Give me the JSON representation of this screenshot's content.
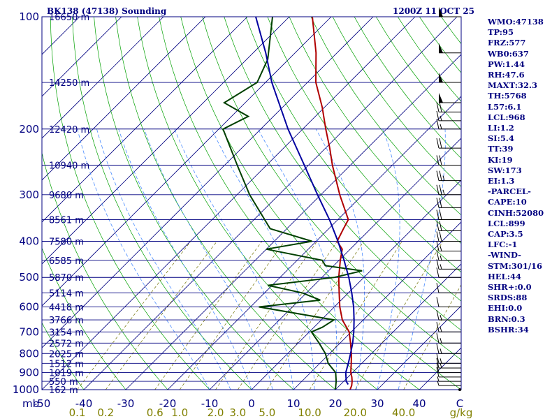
{
  "header": {
    "station": "BK138 (47138) Sounding",
    "time": "1200Z 11 OCT 25"
  },
  "indices": [
    "WMO:47138",
    "TP:95",
    "FRZ:577",
    "WB0:637",
    "PW:1.44",
    "RH:47.6",
    "MAXT:32.3",
    "TH:5768",
    "L57:6.1",
    "LCL:968",
    "LI:1.2",
    "SI:5.4",
    "TT:39",
    "KI:19",
    "SW:173",
    "EI:1.3",
    "-PARCEL-",
    "CAPE:10",
    "CINH:52080",
    "LCL:899",
    "CAP:3.5",
    "LFC:-1",
    "-WIND-",
    "STM:301/16",
    "HEL:44",
    "SHR+:0.0",
    "SRDS:88",
    "EHI:0.0",
    "BRN:0.3",
    "BSHR:34"
  ],
  "colors": {
    "isobar": "#000080",
    "temperature": "#b00000",
    "dewpoint": "#004000",
    "parcel": "#0000a0",
    "dry_adiabat": "#00a000",
    "moist_adiabat": "#4a8cff",
    "mixing_ratio": "#707000",
    "isotherm": "#000080"
  },
  "chart_data": {
    "type": "line",
    "chart_kind": "skew-T log-P sounding",
    "pressure_axis": {
      "unit": "mb",
      "label": "mb",
      "ticks": [
        100,
        200,
        300,
        400,
        500,
        600,
        700,
        800,
        900,
        1000
      ],
      "range": [
        1000,
        100
      ],
      "scale": "log"
    },
    "temperature_axis": {
      "unit": "C",
      "label": "C",
      "ticks": [
        -50,
        -40,
        -30,
        -20,
        -10,
        0,
        10,
        20,
        30,
        40
      ],
      "range_at_surface": [
        -50,
        50
      ]
    },
    "mixing_ratio_axis": {
      "unit": "g/kg",
      "label": "g/kg",
      "ticks": [
        "0.1",
        "0.2",
        "0.6",
        "1.0",
        "2.0",
        "3.0",
        "5.0",
        "10.0",
        "20.0",
        "40.0"
      ],
      "values": [
        0.1,
        0.2,
        0.6,
        1.0,
        2.0,
        3.0,
        5.0,
        10.0,
        20.0,
        40.0
      ]
    },
    "heights": [
      {
        "p": 100,
        "label": "16650 m"
      },
      {
        "p": 150,
        "label": "14250 m"
      },
      {
        "p": 200,
        "label": "12420 m"
      },
      {
        "p": 250,
        "label": "10940 m"
      },
      {
        "p": 300,
        "label": "9680 m"
      },
      {
        "p": 350,
        "label": "8561 m"
      },
      {
        "p": 400,
        "label": "7580 m"
      },
      {
        "p": 450,
        "label": "6585 m"
      },
      {
        "p": 500,
        "label": "5870 m"
      },
      {
        "p": 550,
        "label": "5114 m"
      },
      {
        "p": 600,
        "label": "4418 m"
      },
      {
        "p": 650,
        "label": "3766 m"
      },
      {
        "p": 700,
        "label": "3154 m"
      },
      {
        "p": 750,
        "label": "2572 m"
      },
      {
        "p": 800,
        "label": "2025 m"
      },
      {
        "p": 850,
        "label": "1512 m"
      },
      {
        "p": 900,
        "label": "1019 m"
      },
      {
        "p": 950,
        "label": "550 m"
      },
      {
        "p": 1000,
        "label": "162 m"
      }
    ],
    "series": [
      {
        "name": "temperature",
        "points": [
          [
            1000,
            23.5
          ],
          [
            975,
            22.9
          ],
          [
            950,
            22.0
          ],
          [
            925,
            20.9
          ],
          [
            900,
            19.6
          ],
          [
            850,
            17.5
          ],
          [
            800,
            15.2
          ],
          [
            750,
            12.5
          ],
          [
            700,
            9.5
          ],
          [
            650,
            5.0
          ],
          [
            600,
            1.3
          ],
          [
            550,
            -2.2
          ],
          [
            500,
            -6.0
          ],
          [
            450,
            -9.7
          ],
          [
            420,
            -11.9
          ],
          [
            400,
            -15.0
          ],
          [
            370,
            -16.5
          ],
          [
            350,
            -17.5
          ],
          [
            300,
            -25.5
          ],
          [
            250,
            -34.3
          ],
          [
            225,
            -39.0
          ],
          [
            200,
            -44.5
          ],
          [
            175,
            -50.5
          ],
          [
            150,
            -58.0
          ],
          [
            125,
            -65.0
          ],
          [
            100,
            -74.5
          ]
        ]
      },
      {
        "name": "dewpoint",
        "points": [
          [
            1000,
            20.0
          ],
          [
            950,
            18.2
          ],
          [
            900,
            16.0
          ],
          [
            850,
            12.0
          ],
          [
            800,
            9.0
          ],
          [
            750,
            5.0
          ],
          [
            700,
            0.5
          ],
          [
            680,
            2.0
          ],
          [
            650,
            3.0
          ],
          [
            600,
            -18.0
          ],
          [
            575,
            -5.0
          ],
          [
            550,
            -11.0
          ],
          [
            525,
            -21.0
          ],
          [
            500,
            -7.0
          ],
          [
            480,
            -2.0
          ],
          [
            465,
            -12.0
          ],
          [
            450,
            -14.0
          ],
          [
            420,
            -30.0
          ],
          [
            400,
            -21.0
          ],
          [
            370,
            -34.0
          ],
          [
            300,
            -47.0
          ],
          [
            250,
            -57.0
          ],
          [
            200,
            -69.0
          ],
          [
            185,
            -66.0
          ],
          [
            170,
            -75.0
          ],
          [
            150,
            -72.0
          ],
          [
            130,
            -75.0
          ],
          [
            100,
            -84.0
          ]
        ]
      },
      {
        "name": "parcel",
        "points": [
          [
            968,
            21.8
          ],
          [
            950,
            20.6
          ],
          [
            900,
            18.4
          ],
          [
            850,
            16.8
          ],
          [
            800,
            15.0
          ],
          [
            750,
            13.0
          ],
          [
            700,
            10.6
          ],
          [
            650,
            7.8
          ],
          [
            600,
            4.6
          ],
          [
            550,
            0.8
          ],
          [
            500,
            -3.6
          ],
          [
            450,
            -8.8
          ],
          [
            400,
            -14.8
          ],
          [
            350,
            -22.0
          ],
          [
            300,
            -30.8
          ],
          [
            250,
            -41.0
          ],
          [
            200,
            -53.5
          ],
          [
            150,
            -68.5
          ],
          [
            125,
            -77.0
          ],
          [
            100,
            -88.0
          ]
        ]
      },
      {
        "name": "wind",
        "points": [
          [
            1000,
            0
          ],
          [
            975,
            5
          ],
          [
            950,
            5
          ],
          [
            925,
            10
          ],
          [
            900,
            10
          ],
          [
            875,
            15
          ],
          [
            850,
            15
          ],
          [
            800,
            15
          ],
          [
            750,
            15
          ],
          [
            700,
            15
          ],
          [
            650,
            15
          ],
          [
            600,
            10
          ],
          [
            550,
            10
          ],
          [
            500,
            10
          ],
          [
            475,
            15
          ],
          [
            450,
            15
          ],
          [
            425,
            15
          ],
          [
            400,
            20
          ],
          [
            375,
            20
          ],
          [
            350,
            20
          ],
          [
            325,
            20
          ],
          [
            300,
            25
          ],
          [
            275,
            25
          ],
          [
            250,
            20
          ],
          [
            225,
            20
          ],
          [
            200,
            15
          ],
          [
            190,
            15
          ],
          [
            180,
            20
          ],
          [
            170,
            50
          ],
          [
            150,
            50
          ],
          [
            125,
            50
          ],
          [
            100,
            50
          ]
        ]
      }
    ]
  }
}
